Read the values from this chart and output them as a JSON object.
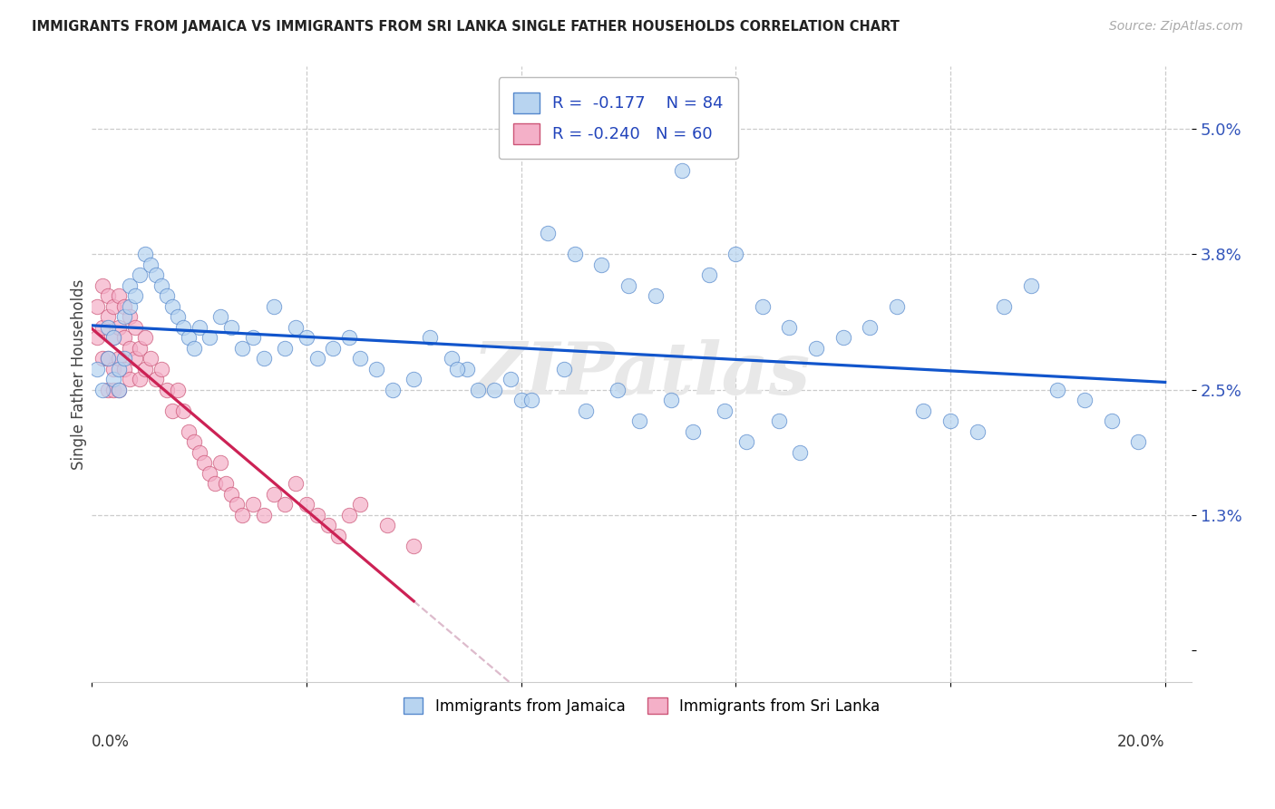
{
  "title": "IMMIGRANTS FROM JAMAICA VS IMMIGRANTS FROM SRI LANKA SINGLE FATHER HOUSEHOLDS CORRELATION CHART",
  "source": "Source: ZipAtlas.com",
  "ylabel": "Single Father Households",
  "ytick_vals": [
    0.0,
    0.013,
    0.025,
    0.038,
    0.05
  ],
  "ytick_labels": [
    "",
    "1.3%",
    "2.5%",
    "3.8%",
    "5.0%"
  ],
  "xtick_vals": [
    0.0,
    0.04,
    0.08,
    0.12,
    0.16,
    0.2
  ],
  "xlim": [
    0.0,
    0.205
  ],
  "ylim": [
    -0.003,
    0.056
  ],
  "legend_r1": "R =  -0.177",
  "legend_n1": "N = 84",
  "legend_r2": "R = -0.240",
  "legend_n2": "N = 60",
  "color_jamaica": "#b8d4f0",
  "color_srilanka": "#f4b0c8",
  "edge_color_jamaica": "#5588cc",
  "edge_color_srilanka": "#cc5577",
  "line_color_jamaica": "#1155cc",
  "line_color_srilanka": "#cc2255",
  "line_color_dashed": "#ddbbcc",
  "background_color": "#ffffff",
  "watermark": "ZIPatlas",
  "jamaica_x": [
    0.001,
    0.002,
    0.003,
    0.003,
    0.004,
    0.004,
    0.005,
    0.005,
    0.006,
    0.006,
    0.007,
    0.007,
    0.008,
    0.009,
    0.01,
    0.011,
    0.012,
    0.013,
    0.014,
    0.015,
    0.016,
    0.017,
    0.018,
    0.019,
    0.02,
    0.022,
    0.024,
    0.026,
    0.028,
    0.03,
    0.032,
    0.034,
    0.036,
    0.038,
    0.04,
    0.042,
    0.045,
    0.048,
    0.05,
    0.053,
    0.056,
    0.06,
    0.063,
    0.067,
    0.07,
    0.075,
    0.08,
    0.085,
    0.09,
    0.095,
    0.1,
    0.105,
    0.11,
    0.115,
    0.12,
    0.125,
    0.13,
    0.135,
    0.14,
    0.145,
    0.15,
    0.155,
    0.16,
    0.165,
    0.17,
    0.175,
    0.18,
    0.185,
    0.19,
    0.195,
    0.068,
    0.072,
    0.078,
    0.082,
    0.088,
    0.092,
    0.098,
    0.102,
    0.108,
    0.112,
    0.118,
    0.122,
    0.128,
    0.132
  ],
  "jamaica_y": [
    0.027,
    0.025,
    0.028,
    0.031,
    0.026,
    0.03,
    0.027,
    0.025,
    0.032,
    0.028,
    0.035,
    0.033,
    0.034,
    0.036,
    0.038,
    0.037,
    0.036,
    0.035,
    0.034,
    0.033,
    0.032,
    0.031,
    0.03,
    0.029,
    0.031,
    0.03,
    0.032,
    0.031,
    0.029,
    0.03,
    0.028,
    0.033,
    0.029,
    0.031,
    0.03,
    0.028,
    0.029,
    0.03,
    0.028,
    0.027,
    0.025,
    0.026,
    0.03,
    0.028,
    0.027,
    0.025,
    0.024,
    0.04,
    0.038,
    0.037,
    0.035,
    0.034,
    0.046,
    0.036,
    0.038,
    0.033,
    0.031,
    0.029,
    0.03,
    0.031,
    0.033,
    0.023,
    0.022,
    0.021,
    0.033,
    0.035,
    0.025,
    0.024,
    0.022,
    0.02,
    0.027,
    0.025,
    0.026,
    0.024,
    0.027,
    0.023,
    0.025,
    0.022,
    0.024,
    0.021,
    0.023,
    0.02,
    0.022,
    0.019
  ],
  "srilanka_x": [
    0.001,
    0.001,
    0.002,
    0.002,
    0.002,
    0.003,
    0.003,
    0.003,
    0.003,
    0.004,
    0.004,
    0.004,
    0.004,
    0.005,
    0.005,
    0.005,
    0.005,
    0.006,
    0.006,
    0.006,
    0.007,
    0.007,
    0.007,
    0.008,
    0.008,
    0.009,
    0.009,
    0.01,
    0.01,
    0.011,
    0.012,
    0.013,
    0.014,
    0.015,
    0.016,
    0.017,
    0.018,
    0.019,
    0.02,
    0.021,
    0.022,
    0.023,
    0.024,
    0.025,
    0.026,
    0.027,
    0.028,
    0.03,
    0.032,
    0.034,
    0.036,
    0.038,
    0.04,
    0.042,
    0.044,
    0.046,
    0.048,
    0.05,
    0.055,
    0.06
  ],
  "srilanka_y": [
    0.033,
    0.03,
    0.035,
    0.031,
    0.028,
    0.034,
    0.032,
    0.028,
    0.025,
    0.033,
    0.03,
    0.027,
    0.025,
    0.034,
    0.031,
    0.028,
    0.025,
    0.033,
    0.03,
    0.027,
    0.032,
    0.029,
    0.026,
    0.031,
    0.028,
    0.029,
    0.026,
    0.03,
    0.027,
    0.028,
    0.026,
    0.027,
    0.025,
    0.023,
    0.025,
    0.023,
    0.021,
    0.02,
    0.019,
    0.018,
    0.017,
    0.016,
    0.018,
    0.016,
    0.015,
    0.014,
    0.013,
    0.014,
    0.013,
    0.015,
    0.014,
    0.016,
    0.014,
    0.013,
    0.012,
    0.011,
    0.013,
    0.014,
    0.012,
    0.01
  ]
}
